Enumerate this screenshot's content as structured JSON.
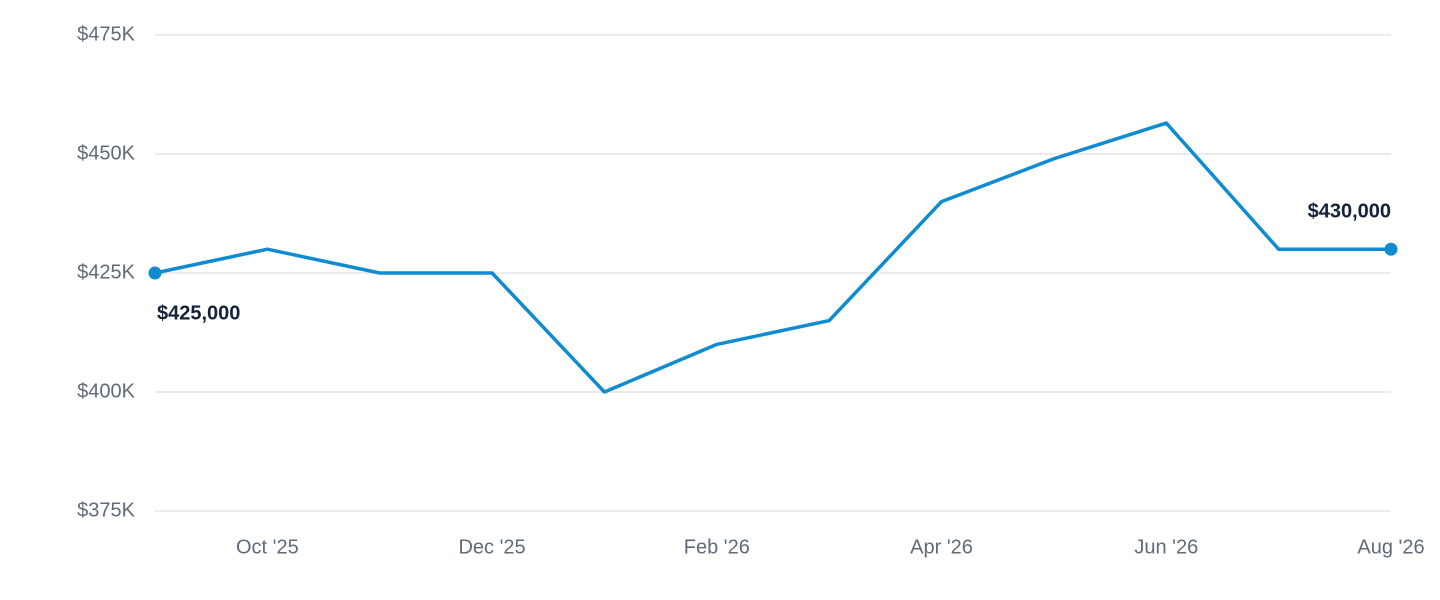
{
  "chart_data": {
    "type": "line",
    "categories": [
      null,
      "Oct '25",
      null,
      "Dec '25",
      null,
      "Feb '26",
      null,
      "Apr '26",
      null,
      "Jun '26",
      null,
      "Aug '26"
    ],
    "values": [
      425000,
      430000,
      425000,
      425000,
      400000,
      410000,
      415000,
      440000,
      449000,
      456500,
      430000,
      430000
    ],
    "value_labels": [
      "$425,000",
      null,
      null,
      null,
      null,
      null,
      null,
      null,
      null,
      null,
      null,
      "$430,000"
    ],
    "color": "#0e8bd1",
    "ylim": [
      375000,
      475000
    ],
    "yticks": [
      {
        "value": 375000,
        "label": "$375K"
      },
      {
        "value": 400000,
        "label": "$400K"
      },
      {
        "value": 425000,
        "label": "$425K"
      },
      {
        "value": 450000,
        "label": "$450K"
      },
      {
        "value": 475000,
        "label": "$475K"
      }
    ],
    "grid": true
  }
}
